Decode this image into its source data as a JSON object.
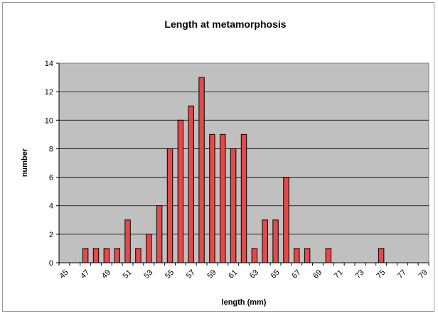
{
  "chart_data": {
    "type": "bar",
    "title": "Length at metamorphosis",
    "xlabel": "length (mm)",
    "ylabel": "number",
    "ylim": [
      0,
      14
    ],
    "y_ticks": [
      0,
      2,
      4,
      6,
      8,
      10,
      12,
      14
    ],
    "x_tick_labels": [
      "45",
      "47",
      "49",
      "51",
      "53",
      "55",
      "57",
      "59",
      "61",
      "63",
      "65",
      "67",
      "69",
      "71",
      "73",
      "75",
      "77",
      "79"
    ],
    "grid": true,
    "legend": "none",
    "bar_color": "#e44a4a",
    "plot_background": "#c0c0c0",
    "categories": [
      45,
      46,
      47,
      48,
      49,
      50,
      51,
      52,
      53,
      54,
      55,
      56,
      57,
      58,
      59,
      60,
      61,
      62,
      63,
      64,
      65,
      66,
      67,
      68,
      69,
      70,
      71,
      72,
      73,
      74,
      75,
      76,
      77,
      78,
      79
    ],
    "values": [
      0,
      0,
      1,
      1,
      1,
      1,
      3,
      1,
      2,
      4,
      8,
      10,
      11,
      13,
      9,
      9,
      8,
      9,
      1,
      3,
      3,
      6,
      1,
      1,
      0,
      1,
      0,
      0,
      0,
      0,
      1,
      0,
      0,
      0,
      0
    ]
  }
}
